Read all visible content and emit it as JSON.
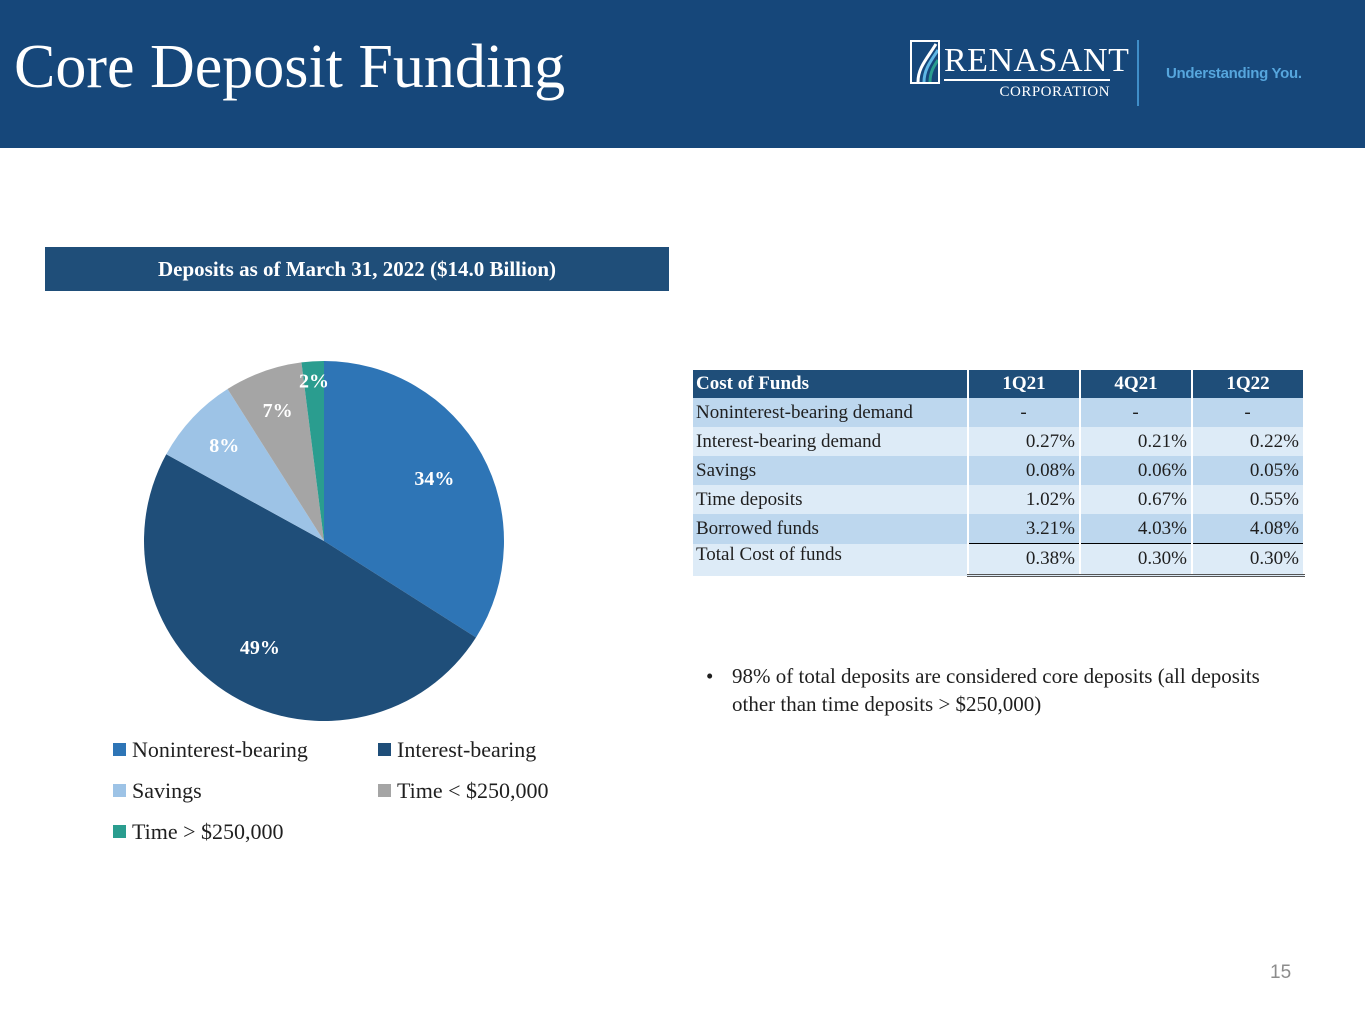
{
  "header": {
    "title": "Core Deposit Funding",
    "logo_name": "RENASANT",
    "logo_sub": "CORPORATION",
    "tagline": "Understanding You."
  },
  "chart_data": {
    "type": "pie",
    "title": "Deposits as of March 31, 2022 ($14.0 Billion)",
    "slices": [
      {
        "name": "Noninterest-bearing",
        "value": 34,
        "label": "34%",
        "color": "#2e75b6"
      },
      {
        "name": "Interest-bearing",
        "value": 49,
        "label": "49%",
        "color": "#1f4e79"
      },
      {
        "name": "Savings",
        "value": 8,
        "label": "8%",
        "color": "#9dc3e6"
      },
      {
        "name": "Time < $250,000",
        "value": 7,
        "label": "7%",
        "color": "#a5a5a5"
      },
      {
        "name": "Time > $250,000",
        "value": 2,
        "label": "2%",
        "color": "#2a9d8f"
      }
    ],
    "legend_position": "bottom"
  },
  "cost_table": {
    "headers": [
      "Cost of Funds",
      "1Q21",
      "4Q21",
      "1Q22"
    ],
    "rows": [
      [
        "Noninterest-bearing demand",
        "-",
        "-",
        "-"
      ],
      [
        "Interest-bearing demand",
        "0.27%",
        "0.21%",
        "0.22%"
      ],
      [
        "Savings",
        "0.08%",
        "0.06%",
        "0.05%"
      ],
      [
        "Time deposits",
        "1.02%",
        "0.67%",
        "0.55%"
      ],
      [
        "Borrowed funds",
        "3.21%",
        "4.03%",
        "4.08%"
      ],
      [
        "Total Cost of funds",
        "0.38%",
        "0.30%",
        "0.30%"
      ]
    ]
  },
  "bullet": {
    "symbol": "•",
    "text": "98% of total deposits are considered core deposits (all deposits other than time deposits > $250,000)"
  },
  "page_number": "15"
}
